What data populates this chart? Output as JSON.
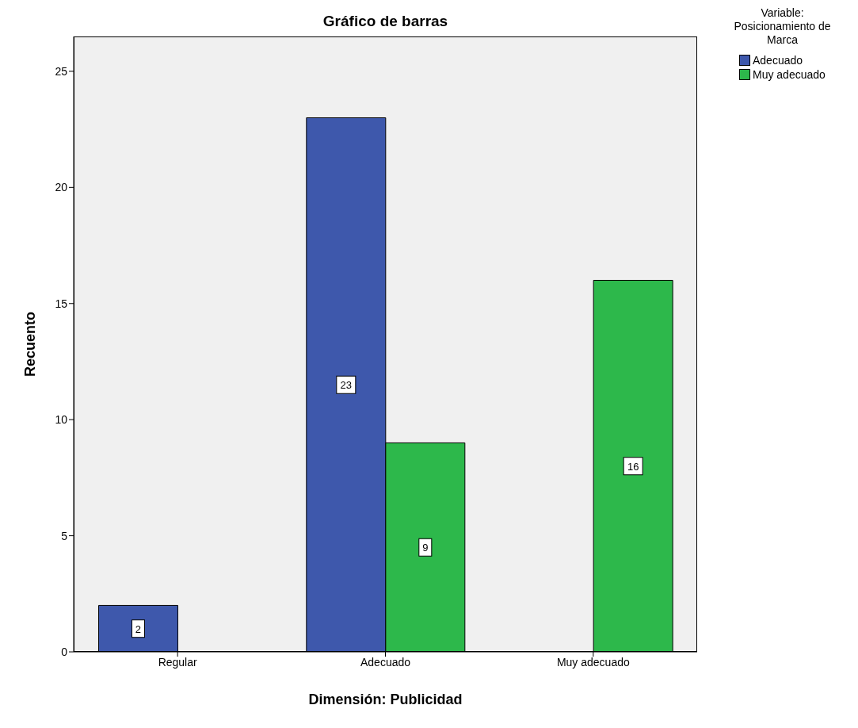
{
  "chart_data": {
    "type": "bar",
    "title": "Gráfico de barras",
    "xlabel": "Dimensión: Publicidad",
    "ylabel": "Recuento",
    "legend_title": "Variable: Posicionamiento de Marca",
    "categories": [
      "Regular",
      "Adecuado",
      "Muy adecuado"
    ],
    "series": [
      {
        "name": "Adecuado",
        "color": "#3e58ac",
        "values": [
          2,
          23,
          null
        ]
      },
      {
        "name": "Muy adecuado",
        "color": "#2db84b",
        "values": [
          null,
          9,
          16
        ]
      }
    ],
    "ylim": [
      0,
      26.5
    ],
    "yticks": [
      0,
      5,
      10,
      15,
      20,
      25
    ],
    "legend": "top right",
    "data_labels": true
  }
}
